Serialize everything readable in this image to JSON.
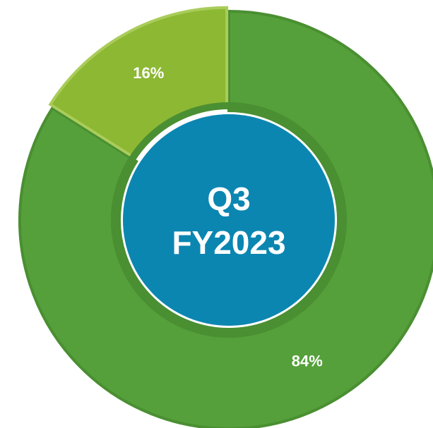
{
  "chart_data": {
    "type": "pie",
    "values": [
      84,
      16
    ],
    "value_labels": [
      "84%",
      "16%"
    ],
    "colors": [
      "#55a03a",
      "#8db833"
    ],
    "center_label": [
      "Q3",
      "FY2023"
    ],
    "center_color": "#0b86b1"
  }
}
